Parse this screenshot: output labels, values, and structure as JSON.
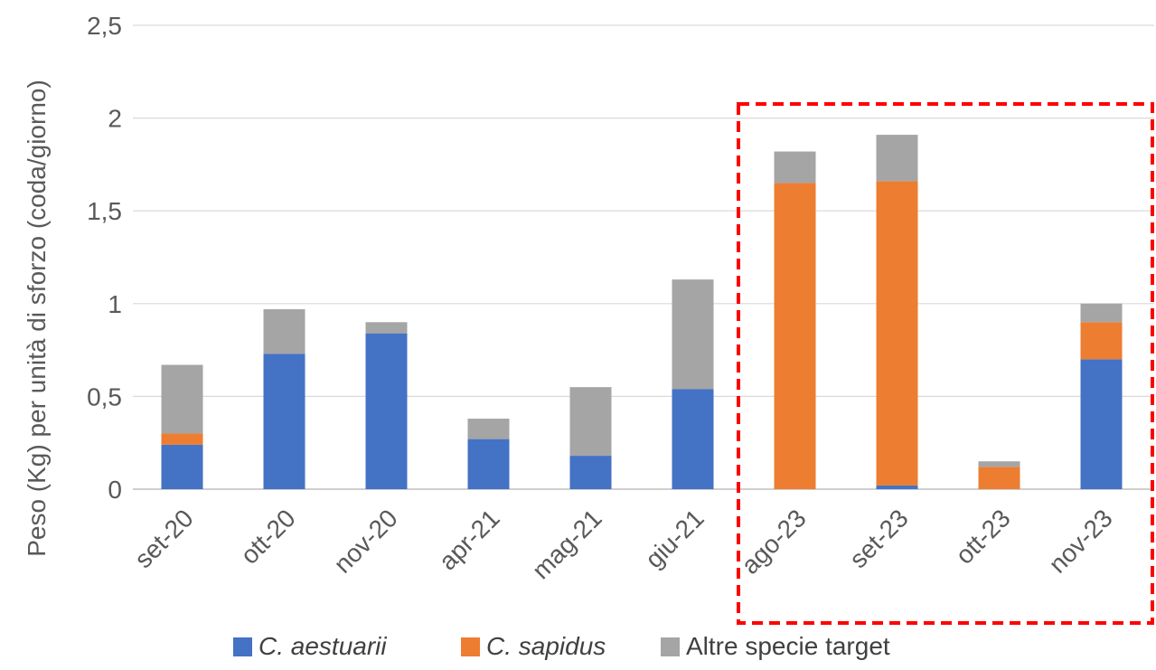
{
  "chart_data": {
    "type": "bar",
    "stacked": true,
    "categories": [
      "set-20",
      "ott-20",
      "nov-20",
      "apr-21",
      "mag-21",
      "giu-21",
      "ago-23",
      "set-23",
      "ott-23",
      "nov-23"
    ],
    "series": [
      {
        "name": "C. aestuarii",
        "color": "#4472C4",
        "values": [
          0.24,
          0.73,
          0.84,
          0.27,
          0.18,
          0.54,
          0.0,
          0.02,
          0.0,
          0.7
        ]
      },
      {
        "name": "C. sapidus",
        "color": "#ED7D31",
        "values": [
          0.06,
          0.0,
          0.0,
          0.0,
          0.0,
          0.0,
          1.65,
          1.64,
          0.12,
          0.2
        ]
      },
      {
        "name": "Altre specie target",
        "color": "#A5A5A5",
        "values": [
          0.37,
          0.24,
          0.06,
          0.11,
          0.37,
          0.59,
          0.17,
          0.25,
          0.03,
          0.1
        ]
      }
    ],
    "y_ticks": [
      "0",
      "0,5",
      "1",
      "1,5",
      "2",
      "2,5"
    ],
    "y_tick_values": [
      0,
      0.5,
      1,
      1.5,
      2,
      2.5
    ],
    "ylim": [
      0,
      2.5
    ],
    "ylabel": "Peso (Kg) per unità di sforzo (coda/giorno)",
    "xlabel": "",
    "title": "",
    "grid": true,
    "legend_position": "bottom",
    "highlight": {
      "from_category": "ago-23",
      "to_category": "nov-23",
      "color": "#FF0000",
      "style": "dashed"
    }
  }
}
